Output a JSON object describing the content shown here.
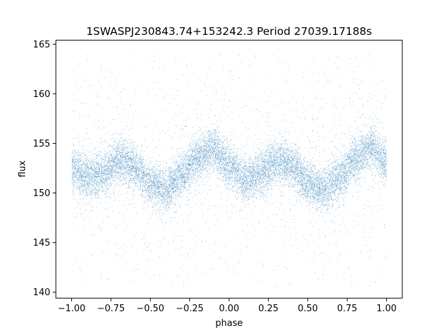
{
  "chart_data": {
    "type": "scatter",
    "title": "1SWASPJ230843.74+153242.3 Period 27039.17188s",
    "xlabel": "phase",
    "ylabel": "flux",
    "xlim": [
      -1.1,
      1.1
    ],
    "ylim": [
      139.4,
      165.4
    ],
    "x_ticks": [
      -1.0,
      -0.75,
      -0.5,
      -0.25,
      0.0,
      0.25,
      0.5,
      0.75,
      1.0
    ],
    "x_tick_labels": [
      "−1.00",
      "−0.75",
      "−0.50",
      "−0.25",
      "0.00",
      "0.25",
      "0.50",
      "0.75",
      "1.00"
    ],
    "y_ticks": [
      140,
      145,
      150,
      155,
      160,
      165
    ],
    "y_tick_labels": [
      "140",
      "145",
      "150",
      "155",
      "160",
      "165"
    ],
    "grid": false,
    "legend": "none",
    "series_color": "#1f77b4",
    "trend": {
      "x": [
        -1.0,
        -0.9,
        -0.8,
        -0.7,
        -0.6,
        -0.5,
        -0.4,
        -0.3,
        -0.2,
        -0.1,
        0.0,
        0.1,
        0.2,
        0.3,
        0.4,
        0.5,
        0.6,
        0.7,
        0.8,
        0.9,
        1.0
      ],
      "y": [
        152.6,
        151.6,
        152.0,
        153.3,
        152.7,
        151.0,
        150.3,
        151.9,
        153.6,
        154.4,
        152.8,
        151.3,
        152.1,
        153.2,
        152.8,
        151.0,
        150.3,
        151.6,
        153.5,
        154.6,
        153.2
      ]
    },
    "point_count": 16000,
    "band_sigma": 1.1,
    "outlier_fraction": 0.13,
    "outlier_range": [
      140.5,
      164.0
    ]
  }
}
